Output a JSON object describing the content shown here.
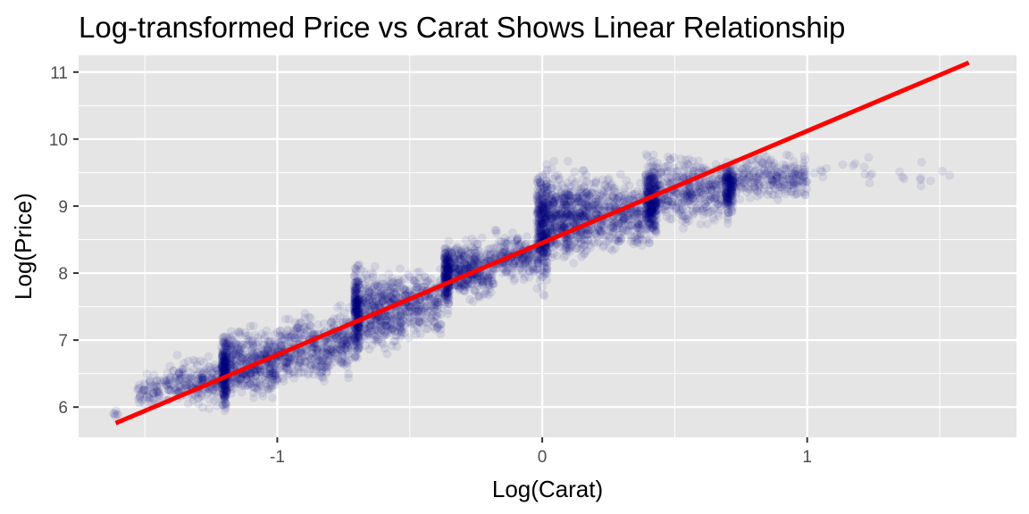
{
  "chart_data": {
    "type": "scatter",
    "title": "Log-transformed Price vs Carat Shows Linear Relationship",
    "xlabel": "Log(Carat)",
    "ylabel": "Log(Price)",
    "xlim": [
      -1.75,
      1.79
    ],
    "ylim": [
      5.55,
      11.25
    ],
    "x_ticks": [
      -1,
      0,
      1
    ],
    "x_tick_labels": [
      "-1",
      "0",
      "1"
    ],
    "y_ticks": [
      6,
      7,
      8,
      9,
      10,
      11
    ],
    "y_tick_labels": [
      "6",
      "7",
      "8",
      "9",
      "10",
      "11"
    ],
    "grid": true,
    "legend": "none",
    "colors": {
      "panel_background": "#e5e5e5",
      "grid": "#ffffff",
      "points": "#000080",
      "fit_line": "#ff0000"
    },
    "point_opacity": 0.08,
    "series": [
      {
        "kind": "points",
        "clusters": [
          {
            "x": [
              -1.62,
              -1.6
            ],
            "y": [
              5.82,
              5.98
            ],
            "n": 6
          },
          {
            "x": [
              -1.53,
              -1.44
            ],
            "y": [
              5.9,
              6.6
            ],
            "n": 60
          },
          {
            "x": [
              -1.43,
              -1.3
            ],
            "y": [
              5.95,
              6.8
            ],
            "n": 110
          },
          {
            "x": [
              -1.3,
              -1.22
            ],
            "y": [
              5.9,
              6.85
            ],
            "n": 100
          },
          {
            "x": [
              -1.21,
              -1.19
            ],
            "y": [
              5.85,
              7.2
            ],
            "n": 260
          },
          {
            "x": [
              -1.19,
              -1.0
            ],
            "y": [
              5.95,
              7.3
            ],
            "n": 420
          },
          {
            "x": [
              -1.0,
              -0.8
            ],
            "y": [
              6.2,
              7.5
            ],
            "n": 320
          },
          {
            "x": [
              -0.8,
              -0.72
            ],
            "y": [
              6.35,
              7.65
            ],
            "n": 140
          },
          {
            "x": [
              -0.71,
              -0.69
            ],
            "y": [
              6.5,
              8.3
            ],
            "n": 260
          },
          {
            "x": [
              -0.69,
              -0.52
            ],
            "y": [
              6.7,
              8.2
            ],
            "n": 400
          },
          {
            "x": [
              -0.52,
              -0.38
            ],
            "y": [
              6.9,
              8.2
            ],
            "n": 220
          },
          {
            "x": [
              -0.37,
              -0.35
            ],
            "y": [
              7.3,
              8.6
            ],
            "n": 220
          },
          {
            "x": [
              -0.35,
              -0.18
            ],
            "y": [
              7.5,
              8.6
            ],
            "n": 360
          },
          {
            "x": [
              -0.18,
              -0.03
            ],
            "y": [
              7.8,
              8.7
            ],
            "n": 200
          },
          {
            "x": [
              -0.02,
              0.02
            ],
            "y": [
              7.6,
              9.75
            ],
            "n": 380
          },
          {
            "x": [
              0.02,
              0.18
            ],
            "y": [
              8.0,
              9.7
            ],
            "n": 520
          },
          {
            "x": [
              0.18,
              0.38
            ],
            "y": [
              8.2,
              9.6
            ],
            "n": 360
          },
          {
            "x": [
              0.39,
              0.43
            ],
            "y": [
              8.3,
              9.85
            ],
            "n": 320
          },
          {
            "x": [
              0.43,
              0.68
            ],
            "y": [
              8.6,
              9.85
            ],
            "n": 380
          },
          {
            "x": [
              0.69,
              0.72
            ],
            "y": [
              8.7,
              9.85
            ],
            "n": 200
          },
          {
            "x": [
              0.72,
              1.0
            ],
            "y": [
              9.0,
              9.85
            ],
            "n": 260
          },
          {
            "x": [
              1.0,
              1.6
            ],
            "y": [
              9.2,
              9.85
            ],
            "n": 24
          }
        ]
      },
      {
        "kind": "line",
        "x": [
          -1.61,
          1.61
        ],
        "y": [
          5.76,
          11.14
        ]
      }
    ]
  }
}
